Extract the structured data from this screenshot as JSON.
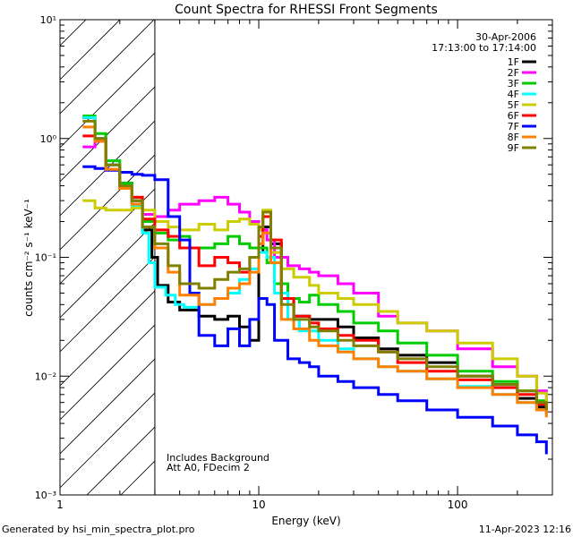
{
  "chart_data": {
    "type": "line",
    "title": "Count Spectra for RHESSI Front Segments",
    "xlabel": "Energy (keV)",
    "ylabel": "counts cm⁻² s⁻¹ keV⁻¹",
    "xscale": "log",
    "yscale": "log",
    "xlim": [
      1,
      300
    ],
    "ylim": [
      0.001,
      10
    ],
    "x_ticks": [
      {
        "value": 1,
        "label": "1"
      },
      {
        "value": 10,
        "label": "10"
      },
      {
        "value": 100,
        "label": "100"
      }
    ],
    "y_ticks": [
      {
        "value": 0.001,
        "label": "10⁻³"
      },
      {
        "value": 0.01,
        "label": "10⁻²"
      },
      {
        "value": 0.1,
        "label": "10⁻¹"
      },
      {
        "value": 1,
        "label": "10⁰"
      },
      {
        "value": 10,
        "label": "10¹"
      }
    ],
    "excluded_region": {
      "x_range": [
        1,
        3
      ],
      "fill": "hatched"
    },
    "annotations_top_right": [
      "30-Apr-2006",
      "17:13:00 to 17:14:00"
    ],
    "annotations_bottom_left": [
      "Includes Background",
      "Att A0, FDecim 2"
    ],
    "legend_position": "top-right",
    "series": [
      {
        "name": "1F",
        "color": "#000000",
        "x": [
          1.3,
          1.5,
          1.7,
          2.0,
          2.3,
          2.6,
          2.9,
          3.1,
          3.5,
          4.0,
          5.0,
          6.0,
          7.0,
          8.0,
          9.0,
          10.0,
          10.5,
          11.5,
          13,
          15,
          18,
          20,
          25,
          30,
          40,
          50,
          70,
          100,
          150,
          200,
          250,
          280
        ],
        "values": [
          1.5,
          1.0,
          0.6,
          0.42,
          0.3,
          0.17,
          0.1,
          0.058,
          0.042,
          0.036,
          0.032,
          0.03,
          0.032,
          0.026,
          0.02,
          0.11,
          0.18,
          0.13,
          0.045,
          0.032,
          0.03,
          0.03,
          0.026,
          0.021,
          0.017,
          0.015,
          0.013,
          0.01,
          0.0085,
          0.0065,
          0.0055,
          0.0048
        ]
      },
      {
        "name": "2F",
        "color": "#ff00ff",
        "x": [
          1.3,
          1.5,
          1.7,
          2.0,
          2.3,
          2.6,
          3.0,
          3.5,
          4.0,
          5.0,
          6.0,
          7.0,
          8.0,
          9.0,
          10.0,
          11.0,
          12,
          14,
          16,
          18,
          20,
          25,
          30,
          40,
          50,
          70,
          100,
          150,
          200,
          250,
          280
        ],
        "values": [
          0.85,
          1.0,
          0.6,
          0.4,
          0.28,
          0.23,
          0.22,
          0.25,
          0.28,
          0.3,
          0.32,
          0.28,
          0.24,
          0.2,
          0.17,
          0.14,
          0.1,
          0.085,
          0.08,
          0.075,
          0.07,
          0.06,
          0.05,
          0.032,
          0.028,
          0.024,
          0.017,
          0.012,
          0.01,
          0.0075,
          0.0062
        ]
      },
      {
        "name": "3F",
        "color": "#00cc00",
        "x": [
          1.3,
          1.5,
          1.7,
          2.0,
          2.3,
          2.6,
          3.0,
          3.5,
          4.0,
          4.5,
          5.0,
          6.0,
          7.0,
          8.0,
          9.0,
          10.0,
          11.0,
          12,
          14,
          16,
          18,
          20,
          25,
          30,
          40,
          50,
          70,
          100,
          150,
          200,
          250,
          280
        ],
        "values": [
          1.55,
          1.1,
          0.65,
          0.42,
          0.32,
          0.2,
          0.16,
          0.14,
          0.15,
          0.12,
          0.12,
          0.13,
          0.15,
          0.13,
          0.12,
          0.12,
          0.09,
          0.06,
          0.045,
          0.042,
          0.048,
          0.04,
          0.035,
          0.028,
          0.024,
          0.019,
          0.015,
          0.011,
          0.009,
          0.0075,
          0.0062,
          0.0055
        ]
      },
      {
        "name": "4F",
        "color": "#00ffff",
        "x": [
          1.3,
          1.5,
          1.7,
          2.0,
          2.3,
          2.6,
          2.8,
          3.0,
          3.4,
          3.8,
          4.2,
          5.0,
          6.0,
          7.0,
          8.0,
          9.0,
          10.0,
          11.0,
          12,
          14,
          16,
          20,
          25,
          30,
          40,
          50,
          70,
          100,
          150,
          200,
          250,
          280
        ],
        "values": [
          1.5,
          1.0,
          0.6,
          0.4,
          0.27,
          0.16,
          0.09,
          0.056,
          0.048,
          0.04,
          0.038,
          0.04,
          0.045,
          0.05,
          0.065,
          0.08,
          0.11,
          0.1,
          0.05,
          0.03,
          0.024,
          0.02,
          0.017,
          0.014,
          0.012,
          0.011,
          0.0095,
          0.0082,
          0.007,
          0.006,
          0.0052,
          0.0047
        ]
      },
      {
        "name": "5F",
        "color": "#cccc00",
        "x": [
          1.3,
          1.5,
          1.7,
          2.0,
          2.3,
          2.6,
          3.0,
          3.5,
          4.0,
          5.0,
          6.0,
          7.0,
          8.0,
          9.0,
          10.0,
          10.5,
          11.5,
          13,
          15,
          18,
          20,
          25,
          30,
          40,
          50,
          70,
          100,
          150,
          200,
          250,
          280
        ],
        "values": [
          0.3,
          0.26,
          0.25,
          0.25,
          0.26,
          0.25,
          0.2,
          0.18,
          0.17,
          0.19,
          0.17,
          0.2,
          0.21,
          0.19,
          0.17,
          0.25,
          0.11,
          0.08,
          0.068,
          0.058,
          0.05,
          0.045,
          0.04,
          0.035,
          0.028,
          0.024,
          0.019,
          0.014,
          0.01,
          0.0072,
          0.0055
        ]
      },
      {
        "name": "6F",
        "color": "#ff0000",
        "x": [
          1.3,
          1.5,
          1.7,
          2.0,
          2.3,
          2.6,
          3.0,
          3.5,
          4.0,
          5.0,
          6.0,
          7.0,
          8.0,
          9.0,
          10.0,
          10.5,
          11.5,
          13,
          15,
          18,
          20,
          25,
          30,
          40,
          50,
          70,
          100,
          150,
          200,
          250,
          280
        ],
        "values": [
          1.05,
          0.95,
          0.55,
          0.38,
          0.32,
          0.21,
          0.17,
          0.15,
          0.12,
          0.085,
          0.1,
          0.09,
          0.075,
          0.1,
          0.15,
          0.22,
          0.14,
          0.045,
          0.032,
          0.028,
          0.025,
          0.022,
          0.02,
          0.016,
          0.013,
          0.011,
          0.0093,
          0.008,
          0.007,
          0.0058,
          0.005
        ]
      },
      {
        "name": "7F",
        "color": "#0000ff",
        "x": [
          1.3,
          1.5,
          1.7,
          2.0,
          2.3,
          2.6,
          3.0,
          3.5,
          4.0,
          4.5,
          5.0,
          6.0,
          7.0,
          8.0,
          9.0,
          10.0,
          11.0,
          12,
          14,
          16,
          18,
          20,
          25,
          30,
          40,
          50,
          70,
          100,
          150,
          200,
          250,
          280
        ],
        "values": [
          0.58,
          0.56,
          0.54,
          0.52,
          0.5,
          0.49,
          0.45,
          0.22,
          0.14,
          0.05,
          0.022,
          0.018,
          0.025,
          0.018,
          0.03,
          0.045,
          0.04,
          0.02,
          0.014,
          0.013,
          0.012,
          0.01,
          0.009,
          0.008,
          0.007,
          0.0062,
          0.0052,
          0.0045,
          0.0038,
          0.0032,
          0.0028,
          0.0022
        ]
      },
      {
        "name": "8F",
        "color": "#ff8000",
        "x": [
          1.3,
          1.5,
          1.7,
          2.0,
          2.3,
          2.6,
          3.0,
          3.5,
          4.0,
          5.0,
          6.0,
          7.0,
          8.0,
          9.0,
          10.0,
          10.5,
          11.5,
          13,
          15,
          18,
          20,
          25,
          30,
          40,
          50,
          70,
          100,
          150,
          200,
          250,
          280
        ],
        "values": [
          1.25,
          0.95,
          0.55,
          0.38,
          0.28,
          0.18,
          0.12,
          0.075,
          0.048,
          0.04,
          0.045,
          0.055,
          0.06,
          0.075,
          0.13,
          0.16,
          0.09,
          0.03,
          0.025,
          0.02,
          0.018,
          0.016,
          0.014,
          0.012,
          0.011,
          0.0095,
          0.008,
          0.007,
          0.006,
          0.0052,
          0.0045
        ]
      },
      {
        "name": "9F",
        "color": "#808000",
        "x": [
          1.3,
          1.5,
          1.7,
          2.0,
          2.3,
          2.6,
          3.0,
          3.5,
          4.0,
          5.0,
          6.0,
          7.0,
          8.0,
          9.0,
          10.0,
          10.5,
          11.5,
          13,
          15,
          18,
          20,
          25,
          30,
          40,
          50,
          70,
          100,
          150,
          200,
          250,
          280
        ],
        "values": [
          1.4,
          1.0,
          0.6,
          0.4,
          0.3,
          0.18,
          0.13,
          0.085,
          0.06,
          0.055,
          0.065,
          0.075,
          0.08,
          0.1,
          0.18,
          0.24,
          0.12,
          0.04,
          0.03,
          0.026,
          0.024,
          0.02,
          0.018,
          0.016,
          0.014,
          0.012,
          0.01,
          0.0085,
          0.0075,
          0.006,
          0.0052
        ]
      }
    ]
  },
  "footer": {
    "generated_by": "Generated by hsi_min_spectra_plot.pro",
    "timestamp": "11-Apr-2023 12:16"
  }
}
